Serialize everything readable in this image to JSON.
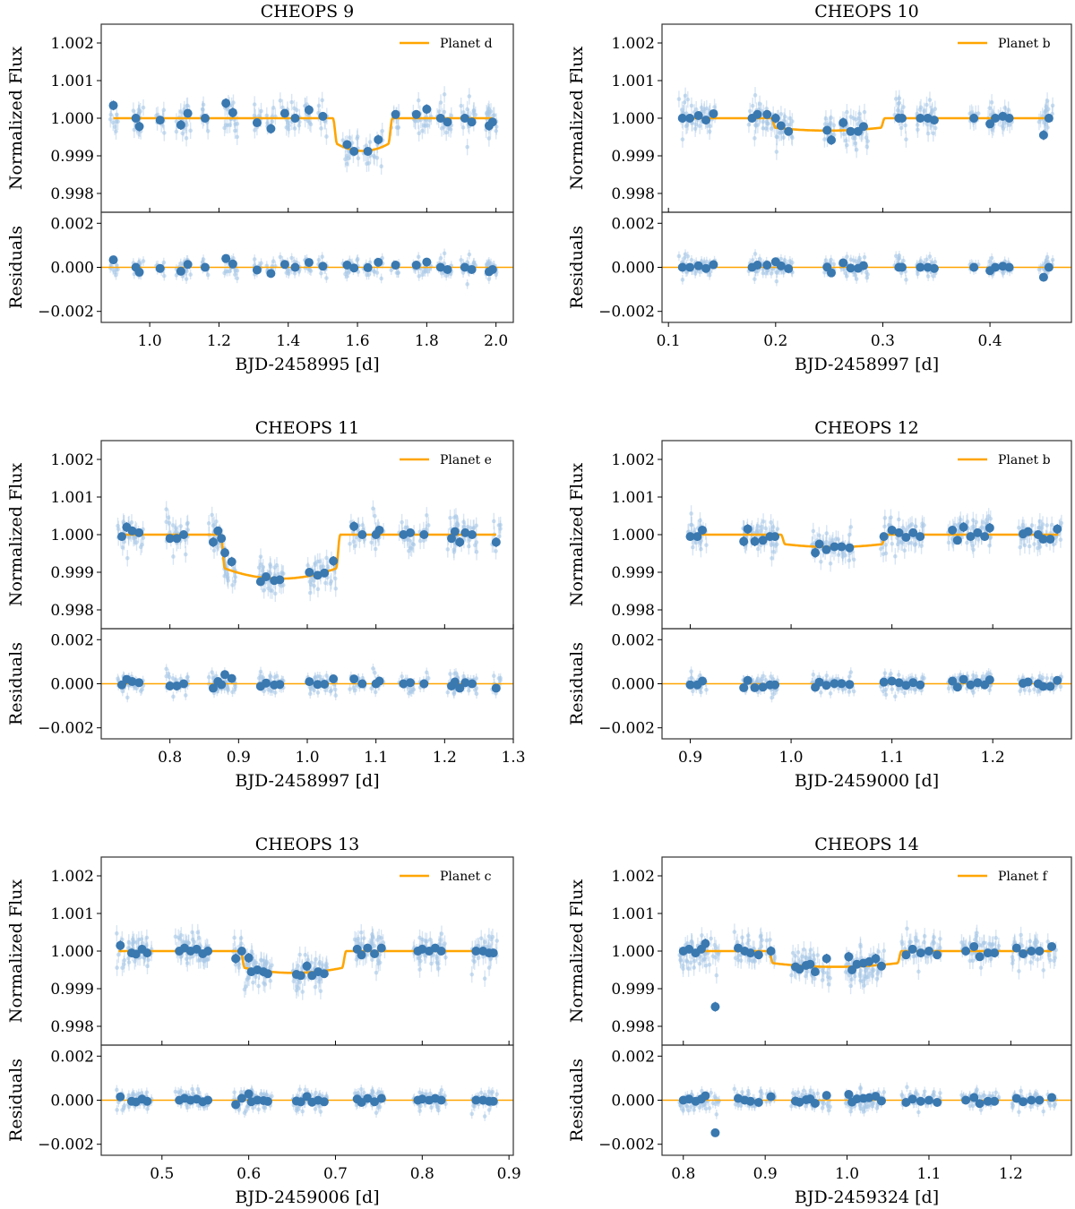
{
  "figure": {
    "colors": {
      "data": "#3a78b0",
      "data_light": "#a9c8e6",
      "model": "#ffa500",
      "axis": "#000000"
    }
  },
  "chart_data": [
    {
      "type": "scatter",
      "title": "CHEOPS 9",
      "legend": "Planet d",
      "legend_position": "top-right",
      "xlabel": "BJD-2458995 [d]",
      "ylabel_top": "Normalized Flux",
      "ylabel_bottom": "Residuals",
      "xlim": [
        0.86,
        2.05
      ],
      "ylim_top": [
        0.9975,
        1.0025
      ],
      "ylim_bottom": [
        -0.0025,
        0.0025
      ],
      "xticks": [
        1.0,
        1.2,
        1.4,
        1.6,
        1.8,
        2.0
      ],
      "xtick_labels": [
        "1.0",
        "1.2",
        "1.4",
        "1.6",
        "1.8",
        "2.0"
      ],
      "yticks_top_labels": [
        "1.002",
        "1.001",
        "1.000",
        "0.999",
        "0.998"
      ],
      "yticks_bottom_labels": [
        "0.002",
        "0.000",
        "−0.002"
      ],
      "transit": {
        "ingress": 1.535,
        "egress": 1.695,
        "depth": 0.00087,
        "curvature": 0.4
      },
      "data_range": [
        0.895,
        1.99
      ],
      "binned_points": [
        [
          0.895,
          1.00034
        ],
        [
          0.96,
          1.0
        ],
        [
          0.97,
          0.99978
        ],
        [
          1.03,
          0.99995
        ],
        [
          1.09,
          0.99982
        ],
        [
          1.11,
          1.00013
        ],
        [
          1.16,
          1.0
        ],
        [
          1.22,
          1.0004
        ],
        [
          1.24,
          1.00015
        ],
        [
          1.31,
          0.99988
        ],
        [
          1.35,
          0.99972
        ],
        [
          1.39,
          1.00013
        ],
        [
          1.42,
          1.0
        ],
        [
          1.46,
          1.00022
        ],
        [
          1.5,
          1.00005
        ],
        [
          1.57,
          0.9993
        ],
        [
          1.59,
          0.99912
        ],
        [
          1.63,
          0.99912
        ],
        [
          1.66,
          0.99943
        ],
        [
          1.71,
          1.0001
        ],
        [
          1.77,
          1.0001
        ],
        [
          1.8,
          1.00024
        ],
        [
          1.84,
          1.0
        ],
        [
          1.86,
          0.9999
        ],
        [
          1.91,
          1.0
        ],
        [
          1.93,
          0.9999
        ],
        [
          1.98,
          0.9998
        ],
        [
          1.99,
          0.9999
        ]
      ]
    },
    {
      "type": "scatter",
      "title": "CHEOPS 10",
      "legend": "Planet b",
      "legend_position": "top-right",
      "xlabel": "BJD-2458997 [d]",
      "ylabel_top": "Normalized Flux",
      "ylabel_bottom": "Residuals",
      "xlim": [
        0.094,
        0.476
      ],
      "ylim_top": [
        0.9975,
        1.0025
      ],
      "ylim_bottom": [
        -0.0025,
        0.0025
      ],
      "xticks": [
        0.1,
        0.2,
        0.3,
        0.4
      ],
      "xtick_labels": [
        "0.1",
        "0.2",
        "0.3",
        "0.4"
      ],
      "yticks_top_labels": [
        "1.002",
        "1.001",
        "1.000",
        "0.999",
        "0.998"
      ],
      "yticks_bottom_labels": [
        "0.002",
        "0.000",
        "−0.002"
      ],
      "transit": {
        "ingress": 0.198,
        "egress": 0.3,
        "depth": 0.00033,
        "curvature": 0.3
      },
      "data_range": [
        0.112,
        0.455
      ],
      "binned_points": [
        [
          0.113,
          1.0
        ],
        [
          0.12,
          1.0
        ],
        [
          0.128,
          1.00007
        ],
        [
          0.135,
          0.99995
        ],
        [
          0.142,
          1.00012
        ],
        [
          0.178,
          1.0
        ],
        [
          0.183,
          1.0001
        ],
        [
          0.192,
          1.0001
        ],
        [
          0.2,
          1.0
        ],
        [
          0.205,
          0.9998
        ],
        [
          0.212,
          0.99965
        ],
        [
          0.248,
          0.99968
        ],
        [
          0.252,
          0.99942
        ],
        [
          0.263,
          0.99988
        ],
        [
          0.27,
          0.99965
        ],
        [
          0.277,
          0.99965
        ],
        [
          0.282,
          0.99978
        ],
        [
          0.315,
          1.0
        ],
        [
          0.318,
          1.0
        ],
        [
          0.335,
          1.0
        ],
        [
          0.342,
          1.0
        ],
        [
          0.348,
          0.99995
        ],
        [
          0.385,
          1.0
        ],
        [
          0.4,
          0.99985
        ],
        [
          0.405,
          1.0
        ],
        [
          0.412,
          1.00005
        ],
        [
          0.418,
          1.0
        ],
        [
          0.45,
          0.99955
        ],
        [
          0.455,
          1.0
        ]
      ]
    },
    {
      "type": "scatter",
      "title": "CHEOPS 11",
      "legend": "Planet e",
      "legend_position": "top-right",
      "xlabel": "BJD-2458997 [d]",
      "ylabel_top": "Normalized Flux",
      "ylabel_bottom": "Residuals",
      "xlim": [
        0.7,
        1.3
      ],
      "ylim_top": [
        0.9975,
        1.0025
      ],
      "ylim_bottom": [
        -0.0025,
        0.0025
      ],
      "xticks": [
        0.8,
        0.9,
        1.0,
        1.1,
        1.2,
        1.3
      ],
      "xtick_labels": [
        "0.8",
        "0.9",
        "1.0",
        "1.1",
        "1.2",
        "1.3"
      ],
      "yticks_top_labels": [
        "1.002",
        "1.001",
        "1.000",
        "0.999",
        "0.998"
      ],
      "yticks_bottom_labels": [
        "0.002",
        "0.000",
        "−0.002"
      ],
      "transit": {
        "ingress": 0.877,
        "egress": 1.045,
        "depth": 0.00117,
        "curvature": 0.55
      },
      "data_range": [
        0.73,
        1.275
      ],
      "binned_points": [
        [
          0.73,
          0.99995
        ],
        [
          0.737,
          1.0002
        ],
        [
          0.745,
          1.0001
        ],
        [
          0.755,
          1.00005
        ],
        [
          0.8,
          0.9999
        ],
        [
          0.81,
          0.9999
        ],
        [
          0.82,
          1.0
        ],
        [
          0.863,
          0.9998
        ],
        [
          0.87,
          1.0001
        ],
        [
          0.875,
          0.9999
        ],
        [
          0.88,
          0.99952
        ],
        [
          0.89,
          0.99928
        ],
        [
          0.932,
          0.99875
        ],
        [
          0.94,
          0.99888
        ],
        [
          0.952,
          0.99878
        ],
        [
          0.96,
          0.9988
        ],
        [
          1.003,
          0.999
        ],
        [
          1.015,
          0.99892
        ],
        [
          1.025,
          0.99898
        ],
        [
          1.038,
          0.9993
        ],
        [
          1.068,
          1.00022
        ],
        [
          1.08,
          1.0
        ],
        [
          1.1,
          1.0
        ],
        [
          1.105,
          1.00012
        ],
        [
          1.14,
          1.0
        ],
        [
          1.15,
          1.00005
        ],
        [
          1.17,
          1.0
        ],
        [
          1.21,
          0.9999
        ],
        [
          1.215,
          1.00008
        ],
        [
          1.222,
          0.9998
        ],
        [
          1.23,
          1.00005
        ],
        [
          1.24,
          1.0
        ],
        [
          1.275,
          0.9998
        ]
      ]
    },
    {
      "type": "scatter",
      "title": "CHEOPS 12",
      "legend": "Planet b",
      "legend_position": "top-right",
      "xlabel": "BJD-2459000 [d]",
      "ylabel_top": "Normalized Flux",
      "ylabel_bottom": "Residuals",
      "xlim": [
        0.872,
        1.278
      ],
      "ylim_top": [
        0.9975,
        1.0025
      ],
      "ylim_bottom": [
        -0.0025,
        0.0025
      ],
      "xticks": [
        0.9,
        1.0,
        1.1,
        1.2
      ],
      "xtick_labels": [
        "0.9",
        "1.0",
        "1.1",
        "1.2"
      ],
      "yticks_top_labels": [
        "1.002",
        "1.001",
        "1.000",
        "0.999",
        "0.998"
      ],
      "yticks_bottom_labels": [
        "0.002",
        "0.000",
        "−0.002"
      ],
      "transit": {
        "ingress": 0.992,
        "egress": 1.092,
        "depth": 0.00033,
        "curvature": 0.3
      },
      "data_range": [
        0.9,
        1.265
      ],
      "binned_points": [
        [
          0.9,
          0.99995
        ],
        [
          0.907,
          0.99995
        ],
        [
          0.912,
          1.00012
        ],
        [
          0.953,
          0.99982
        ],
        [
          0.957,
          1.00015
        ],
        [
          0.964,
          0.99982
        ],
        [
          0.972,
          0.99985
        ],
        [
          0.979,
          0.99995
        ],
        [
          0.984,
          0.99995
        ],
        [
          1.024,
          0.99952
        ],
        [
          1.028,
          0.99975
        ],
        [
          1.035,
          0.9996
        ],
        [
          1.043,
          0.99968
        ],
        [
          1.05,
          0.99968
        ],
        [
          1.058,
          0.99965
        ],
        [
          1.092,
          0.99995
        ],
        [
          1.1,
          1.00012
        ],
        [
          1.107,
          1.00005
        ],
        [
          1.114,
          0.99993
        ],
        [
          1.121,
          1.00005
        ],
        [
          1.128,
          0.99995
        ],
        [
          1.16,
          1.00012
        ],
        [
          1.165,
          0.99985
        ],
        [
          1.171,
          1.0002
        ],
        [
          1.178,
          0.99995
        ],
        [
          1.185,
          1.00005
        ],
        [
          1.192,
          0.99995
        ],
        [
          1.197,
          1.00018
        ],
        [
          1.23,
          1.00002
        ],
        [
          1.235,
          1.00008
        ],
        [
          1.245,
          1.0
        ],
        [
          1.25,
          0.99988
        ],
        [
          1.257,
          0.99988
        ],
        [
          1.264,
          1.00015
        ]
      ]
    },
    {
      "type": "scatter",
      "title": "CHEOPS 13",
      "legend": "Planet c",
      "legend_position": "top-right",
      "xlabel": "BJD-2459006 [d]",
      "ylabel_top": "Normalized Flux",
      "ylabel_bottom": "Residuals",
      "xlim": [
        0.43,
        0.905
      ],
      "ylim_top": [
        0.9975,
        1.0025
      ],
      "ylim_bottom": [
        -0.0025,
        0.0025
      ],
      "xticks": [
        0.5,
        0.6,
        0.7,
        0.8,
        0.9
      ],
      "xtick_labels": [
        "0.5",
        "0.6",
        "0.7",
        "0.8",
        "0.9"
      ],
      "yticks_top_labels": [
        "1.002",
        "1.001",
        "1.000",
        "0.999",
        "0.998"
      ],
      "yticks_bottom_labels": [
        "0.002",
        "0.000",
        "−0.002"
      ],
      "transit": {
        "ingress": 0.593,
        "egress": 0.71,
        "depth": 0.00058,
        "curvature": 0.4
      },
      "data_range": [
        0.45,
        0.882
      ],
      "binned_points": [
        [
          0.452,
          1.00015
        ],
        [
          0.465,
          0.99995
        ],
        [
          0.47,
          0.99992
        ],
        [
          0.477,
          1.00005
        ],
        [
          0.483,
          0.99995
        ],
        [
          0.52,
          1.0
        ],
        [
          0.526,
          1.00008
        ],
        [
          0.533,
          1.0
        ],
        [
          0.54,
          1.00005
        ],
        [
          0.547,
          0.99993
        ],
        [
          0.553,
          1.0
        ],
        [
          0.585,
          0.9998
        ],
        [
          0.592,
          1.0
        ],
        [
          0.6,
          0.99982
        ],
        [
          0.603,
          0.99945
        ],
        [
          0.61,
          0.9995
        ],
        [
          0.617,
          0.99945
        ],
        [
          0.622,
          0.9994
        ],
        [
          0.655,
          0.99938
        ],
        [
          0.66,
          0.99935
        ],
        [
          0.667,
          0.9996
        ],
        [
          0.673,
          0.99935
        ],
        [
          0.68,
          0.99945
        ],
        [
          0.687,
          0.9994
        ],
        [
          0.725,
          1.00005
        ],
        [
          0.73,
          0.9999
        ],
        [
          0.737,
          1.00008
        ],
        [
          0.745,
          0.99993
        ],
        [
          0.753,
          1.00008
        ],
        [
          0.795,
          1.0
        ],
        [
          0.8,
          1.00005
        ],
        [
          0.808,
          1.0
        ],
        [
          0.815,
          1.00008
        ],
        [
          0.822,
          1.0
        ],
        [
          0.862,
          1.0
        ],
        [
          0.87,
          1.0
        ],
        [
          0.877,
          0.99995
        ],
        [
          0.882,
          0.99995
        ]
      ]
    },
    {
      "type": "scatter",
      "title": "CHEOPS 14",
      "legend": "Planet f",
      "legend_position": "top-right",
      "xlabel": "BJD-2459324 [d]",
      "ylabel_top": "Normalized Flux",
      "ylabel_bottom": "Residuals",
      "xlim": [
        0.774,
        1.274
      ],
      "ylim_top": [
        0.9975,
        1.0025
      ],
      "ylim_bottom": [
        -0.0025,
        0.0025
      ],
      "xticks": [
        0.8,
        0.9,
        1.0,
        1.1,
        1.2
      ],
      "xtick_labels": [
        "0.8",
        "0.9",
        "1.0",
        "1.1",
        "1.2"
      ],
      "yticks_top_labels": [
        "1.002",
        "1.001",
        "1.000",
        "0.999",
        "0.998"
      ],
      "yticks_bottom_labels": [
        "0.002",
        "0.000",
        "−0.002"
      ],
      "transit": {
        "ingress": 0.907,
        "egress": 1.064,
        "depth": 0.00042,
        "curvature": 0.3
      },
      "data_range": [
        0.8,
        1.25
      ],
      "binned_points": [
        [
          0.8,
          1.0
        ],
        [
          0.807,
          1.00005
        ],
        [
          0.815,
          0.99995
        ],
        [
          0.822,
          1.00005
        ],
        [
          0.827,
          1.0002
        ],
        [
          0.839,
          0.99852
        ],
        [
          0.867,
          1.00008
        ],
        [
          0.875,
          1.0
        ],
        [
          0.882,
          0.99995
        ],
        [
          0.892,
          0.9999
        ],
        [
          0.907,
          1.0
        ],
        [
          0.937,
          0.99958
        ],
        [
          0.942,
          0.99952
        ],
        [
          0.95,
          0.99962
        ],
        [
          0.955,
          0.99965
        ],
        [
          0.961,
          0.99945
        ],
        [
          0.975,
          0.9998
        ],
        [
          1.002,
          0.99985
        ],
        [
          1.006,
          0.9995
        ],
        [
          1.012,
          0.99965
        ],
        [
          1.02,
          0.99968
        ],
        [
          1.027,
          0.99972
        ],
        [
          1.035,
          0.9998
        ],
        [
          1.042,
          0.9996
        ],
        [
          1.072,
          0.9999
        ],
        [
          1.08,
          1.00005
        ],
        [
          1.09,
          0.99995
        ],
        [
          1.1,
          1.0
        ],
        [
          1.11,
          0.9999
        ],
        [
          1.145,
          1.0
        ],
        [
          1.155,
          1.00012
        ],
        [
          1.162,
          0.99985
        ],
        [
          1.172,
          0.99995
        ],
        [
          1.18,
          0.99995
        ],
        [
          1.207,
          1.00008
        ],
        [
          1.215,
          0.99993
        ],
        [
          1.225,
          1.0
        ],
        [
          1.235,
          1.0
        ],
        [
          1.25,
          1.00012
        ]
      ]
    }
  ]
}
